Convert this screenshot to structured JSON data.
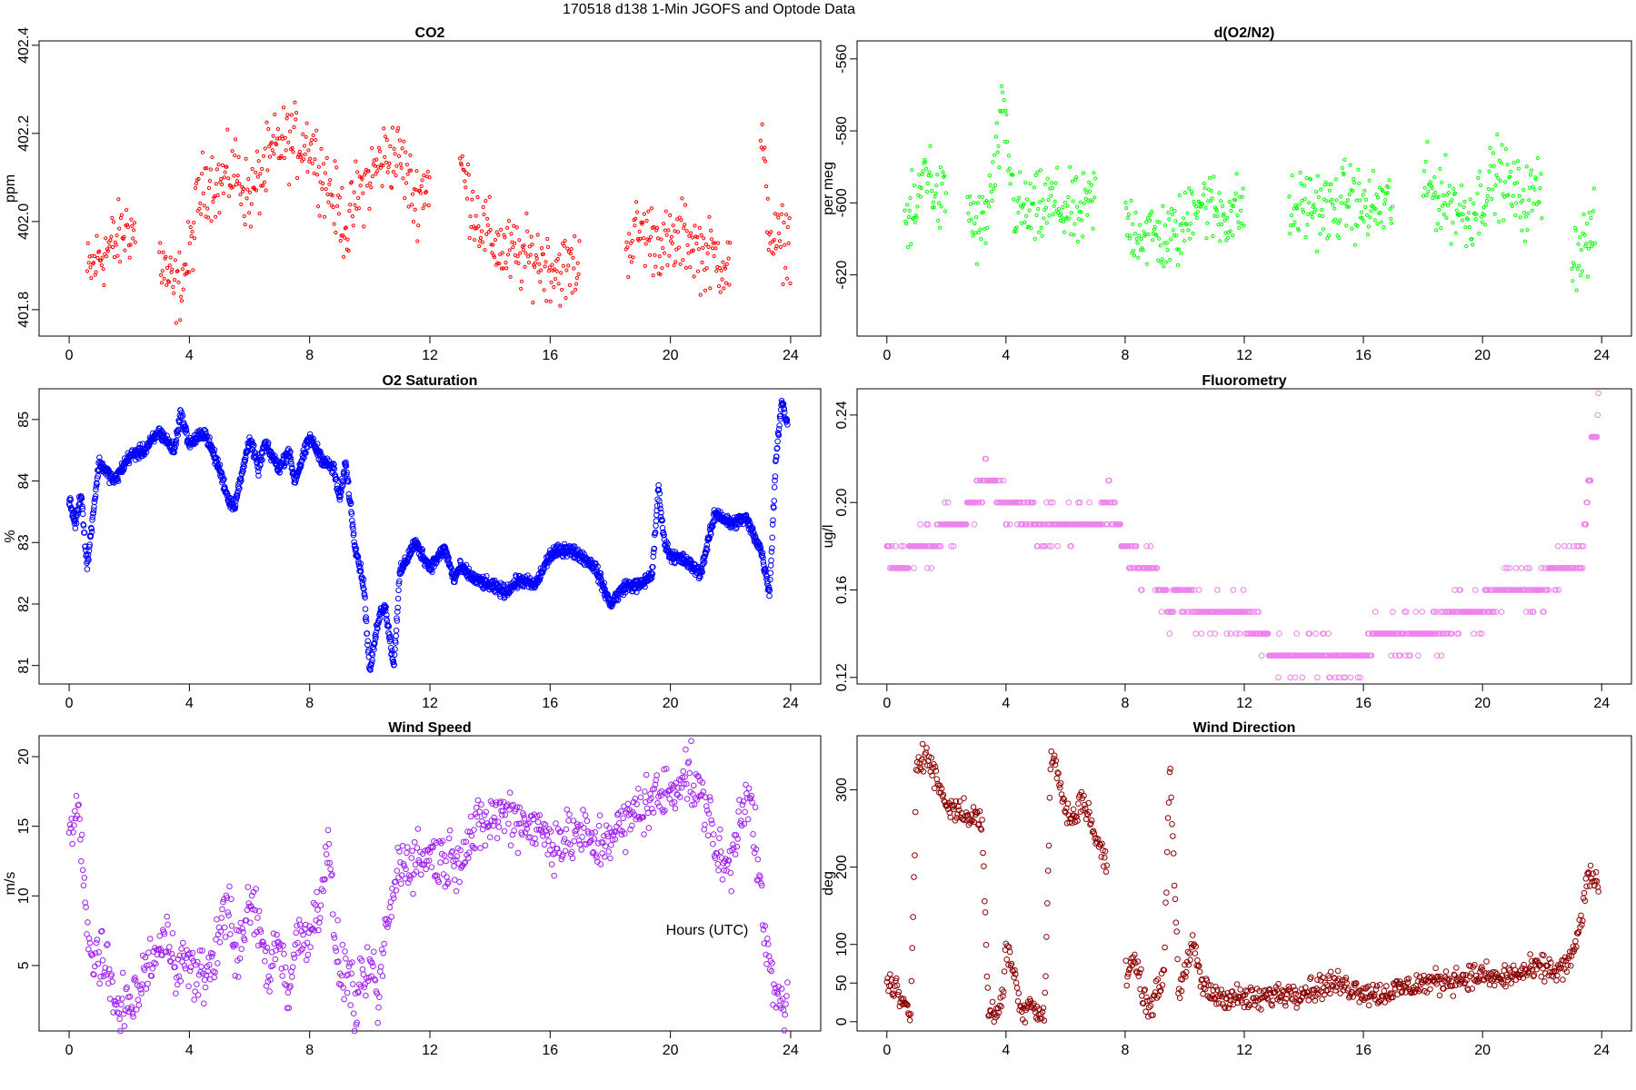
{
  "figure": {
    "title": "170518   d138   1-Min  JGOFS and Optode Data",
    "xlabel": "Hours (UTC)"
  },
  "chart_data": [
    {
      "id": "co2",
      "type": "scatter",
      "title": "CO2",
      "ylabel": "ppm",
      "xlabel": "",
      "xlim": [
        -1,
        25
      ],
      "ylim": [
        401.74,
        402.41
      ],
      "xticks": [
        0,
        4,
        8,
        12,
        16,
        20,
        24
      ],
      "xtick_labels": [
        "0",
        "4",
        "8",
        "12",
        "16",
        "20",
        "24"
      ],
      "yticks": [
        401.8,
        402.0,
        402.2,
        402.4
      ],
      "ytick_labels": [
        "401.8",
        "402.0",
        "402.2",
        "402.4"
      ],
      "color": "#ff0000",
      "marker_size": 1.6,
      "noise": 0.04,
      "series_x": [
        0.6,
        1.0,
        1.5,
        2.0,
        2.2,
        2.7,
        3.0,
        3.3,
        3.5,
        3.7,
        4.0,
        4.3,
        4.6,
        5.0,
        5.5,
        6.0,
        6.5,
        7.0,
        8.0,
        8.5,
        9.0,
        9.3,
        9.5,
        10.0,
        10.5,
        11.0,
        11.5,
        12.0,
        12.5,
        13.0,
        13.5,
        14.0,
        14.5,
        15.0,
        15.5,
        16.0,
        16.5,
        17.0,
        18.0,
        18.5,
        19.0,
        19.5,
        20.0,
        20.5,
        21.0,
        21.5,
        22.0,
        22.2,
        23.0,
        23.3,
        23.5,
        24.0
      ],
      "series_y": [
        401.88,
        401.92,
        401.95,
        401.99,
        401.97,
        null,
        401.92,
        401.87,
        401.84,
        401.86,
        401.92,
        402.05,
        402.1,
        402.08,
        402.12,
        402.05,
        402.12,
        402.18,
        402.18,
        402.1,
        402.02,
        401.98,
        402.05,
        402.1,
        402.15,
        402.15,
        402.05,
        402.1,
        null,
        402.13,
        402.02,
        401.96,
        401.93,
        401.92,
        401.92,
        401.9,
        401.89,
        401.9,
        null,
        401.95,
        401.98,
        401.96,
        401.94,
        401.97,
        401.93,
        401.92,
        401.9,
        null,
        402.2,
        401.98,
        401.95,
        401.96
      ]
    },
    {
      "id": "o2n2",
      "type": "scatter",
      "title": "d(O2/N2)",
      "ylabel": "per meg",
      "xlabel": "",
      "xlim": [
        -1,
        25
      ],
      "ylim": [
        -637,
        -555
      ],
      "xticks": [
        0,
        4,
        8,
        12,
        16,
        20,
        24
      ],
      "xtick_labels": [
        "0",
        "4",
        "8",
        "12",
        "16",
        "20",
        "24"
      ],
      "yticks": [
        -620,
        -600,
        -580,
        -560
      ],
      "ytick_labels": [
        "-620",
        "-600",
        "-580",
        "-560"
      ],
      "color": "#00ff00",
      "marker_size": 1.6,
      "noise": 5,
      "series_x": [
        0.6,
        1.0,
        1.3,
        1.7,
        2.0,
        2.4,
        2.7,
        3.0,
        3.3,
        3.6,
        3.9,
        4.3,
        5.0,
        5.5,
        6.0,
        6.5,
        7.0,
        7.2,
        8.0,
        8.5,
        9.0,
        9.5,
        10.0,
        10.3,
        11.0,
        11.5,
        12.0,
        12.4,
        13.5,
        14.0,
        15.0,
        15.5,
        16.0,
        17.0,
        17.8,
        18.0,
        19.0,
        19.5,
        20.0,
        20.5,
        21.0,
        21.5,
        22.0,
        22.2,
        23.0,
        23.3,
        23.8
      ],
      "series_y": [
        -605,
        -603,
        -588,
        -600,
        -598,
        null,
        -600,
        -608,
        -605,
        -593,
        -575,
        -602,
        -603,
        -600,
        -602,
        -604,
        -598,
        null,
        -605,
        -608,
        -609,
        -610,
        -607,
        -598,
        -602,
        -603,
        -601,
        null,
        -604,
        -600,
        -602,
        -598,
        -602,
        -600,
        null,
        -595,
        -600,
        -604,
        -598,
        -592,
        -597,
        -600,
        -595,
        null,
        -615,
        -612,
        -608
      ]
    },
    {
      "id": "o2sat",
      "type": "line",
      "title": "O2 Saturation",
      "ylabel": "%",
      "xlabel": "",
      "xlim": [
        -1,
        25
      ],
      "ylim": [
        80.7,
        85.5
      ],
      "xticks": [
        0,
        4,
        8,
        12,
        16,
        20,
        24
      ],
      "xtick_labels": [
        "0",
        "4",
        "8",
        "12",
        "16",
        "20",
        "24"
      ],
      "yticks": [
        81,
        82,
        83,
        84,
        85
      ],
      "ytick_labels": [
        "81",
        "82",
        "83",
        "84",
        "85"
      ],
      "color": "#0000ff",
      "marker_size": 2.8,
      "noise": 0.05,
      "series_x": [
        0,
        0.2,
        0.4,
        0.6,
        0.8,
        1.0,
        1.5,
        2.0,
        2.5,
        3.0,
        3.5,
        3.7,
        4.0,
        4.5,
        5.0,
        5.3,
        5.5,
        5.7,
        6.0,
        6.3,
        6.5,
        7.0,
        7.3,
        7.5,
        8.0,
        8.5,
        8.8,
        9.0,
        9.2,
        9.5,
        9.8,
        10.0,
        10.3,
        10.5,
        10.8,
        11.0,
        11.5,
        12.0,
        12.5,
        12.8,
        13.0,
        13.5,
        14.0,
        14.5,
        15.0,
        15.5,
        16.0,
        16.5,
        17.0,
        17.5,
        18.0,
        18.5,
        19.0,
        19.4,
        19.6,
        19.8,
        20.0,
        20.5,
        21.0,
        21.5,
        22.0,
        22.5,
        23.0,
        23.3,
        23.5,
        23.7,
        23.9
      ],
      "series_y": [
        83.7,
        83.3,
        83.8,
        82.6,
        83.5,
        84.3,
        84.0,
        84.4,
        84.5,
        84.8,
        84.5,
        85.1,
        84.6,
        84.8,
        84.2,
        83.7,
        83.6,
        84.0,
        84.7,
        84.2,
        84.6,
        84.2,
        84.5,
        84.0,
        84.7,
        84.3,
        84.2,
        83.7,
        84.3,
        83.0,
        82.3,
        80.9,
        81.8,
        82.0,
        81.0,
        82.5,
        83.0,
        82.6,
        82.9,
        82.4,
        82.6,
        82.4,
        82.3,
        82.2,
        82.4,
        82.3,
        82.8,
        82.9,
        82.8,
        82.6,
        82.0,
        82.3,
        82.3,
        82.5,
        83.9,
        83.0,
        82.8,
        82.7,
        82.5,
        83.5,
        83.3,
        83.4,
        82.9,
        82.2,
        84.3,
        85.3,
        84.9
      ]
    },
    {
      "id": "fluor",
      "type": "scatter",
      "title": "Fluorometry",
      "ylabel": "ug/l",
      "xlabel": "",
      "xlim": [
        -1,
        25
      ],
      "ylim": [
        0.117,
        0.252
      ],
      "xticks": [
        0,
        4,
        8,
        12,
        16,
        20,
        24
      ],
      "xtick_labels": [
        "0",
        "4",
        "8",
        "12",
        "16",
        "20",
        "24"
      ],
      "yticks": [
        0.12,
        0.16,
        0.2,
        0.24
      ],
      "ytick_labels": [
        "0.12",
        "0.16",
        "0.20",
        "0.24"
      ],
      "color": "#ee82ee",
      "marker_size": 2.8,
      "noise": 0.004,
      "quantize": 0.01,
      "series_x": [
        0,
        0.5,
        1.0,
        1.5,
        2.0,
        2.5,
        3.0,
        3.3,
        3.5,
        4.0,
        4.5,
        5.0,
        5.5,
        6.0,
        6.5,
        7.0,
        7.5,
        8.0,
        8.5,
        9.0,
        9.5,
        10.0,
        10.5,
        11.0,
        11.5,
        12.0,
        12.5,
        13.0,
        13.5,
        14.0,
        14.5,
        15.0,
        15.5,
        16.0,
        16.5,
        17.0,
        17.5,
        18.0,
        18.5,
        19.0,
        19.5,
        20.0,
        20.5,
        21.0,
        21.5,
        22.0,
        22.5,
        23.0,
        23.3,
        23.5,
        23.7,
        23.9
      ],
      "series_y": [
        0.18,
        0.17,
        0.18,
        0.18,
        0.19,
        0.19,
        0.2,
        0.21,
        0.21,
        0.2,
        0.2,
        0.19,
        0.19,
        0.19,
        0.19,
        0.19,
        0.2,
        0.18,
        0.17,
        0.17,
        0.15,
        0.16,
        0.15,
        0.15,
        0.15,
        0.15,
        0.14,
        0.13,
        0.13,
        0.13,
        0.13,
        0.13,
        0.13,
        0.13,
        0.14,
        0.14,
        0.14,
        0.14,
        0.14,
        0.15,
        0.15,
        0.15,
        0.16,
        0.16,
        0.16,
        0.16,
        0.17,
        0.17,
        0.17,
        0.2,
        0.23,
        0.24
      ]
    },
    {
      "id": "wspd",
      "type": "scatter",
      "title": "Wind Speed",
      "ylabel": "m/s",
      "xlabel": "",
      "xlim": [
        -1,
        25
      ],
      "ylim": [
        0.3,
        21.5
      ],
      "xticks": [
        0,
        4,
        8,
        12,
        16,
        20,
        24
      ],
      "xtick_labels": [
        "0",
        "4",
        "8",
        "12",
        "16",
        "20",
        "24"
      ],
      "yticks": [
        5,
        10,
        15,
        20
      ],
      "ytick_labels": [
        "5",
        "10",
        "15",
        "20"
      ],
      "color": "#a020f0",
      "marker_size": 2.8,
      "noise": 1.0,
      "series_x": [
        0,
        0.3,
        0.5,
        0.7,
        1.0,
        1.3,
        1.5,
        2.0,
        2.3,
        2.6,
        3.0,
        3.3,
        3.5,
        4.0,
        4.3,
        4.6,
        5.0,
        5.3,
        5.6,
        6.0,
        6.3,
        6.6,
        7.0,
        7.3,
        7.6,
        8.0,
        8.3,
        8.6,
        8.8,
        9.0,
        9.3,
        9.5,
        9.8,
        10.0,
        10.3,
        10.5,
        11.0,
        11.5,
        12.0,
        12.5,
        13.0,
        13.5,
        14.0,
        14.5,
        15.0,
        15.5,
        16.0,
        16.5,
        17.0,
        17.5,
        18.0,
        18.5,
        19.0,
        19.5,
        20.0,
        20.5,
        21.0,
        21.3,
        21.6,
        22.0,
        22.3,
        22.6,
        22.9,
        23.2,
        23.5,
        23.7,
        23.9
      ],
      "series_y": [
        14.5,
        16.5,
        10,
        5.5,
        6,
        4,
        2.5,
        2,
        3,
        5,
        6,
        7,
        5.5,
        5,
        4,
        4.5,
        7,
        10,
        5,
        9.5,
        8,
        4.5,
        7,
        3,
        7,
        7.5,
        9,
        14,
        8,
        4.5,
        4.5,
        2,
        3.5,
        5,
        2.5,
        7,
        12.5,
        12.5,
        13,
        12.5,
        13,
        14.5,
        15.5,
        16,
        15.5,
        15,
        14,
        14,
        14.5,
        13.5,
        14.5,
        15,
        16.5,
        17,
        17.5,
        19,
        17,
        16,
        12.5,
        12,
        16,
        18,
        12,
        6,
        2.5,
        2.5,
        2.5
      ]
    },
    {
      "id": "wdir",
      "type": "scatter",
      "title": "Wind Direction",
      "ylabel": "deg",
      "xlabel": "",
      "xlim": [
        -1,
        25
      ],
      "ylim": [
        -12,
        370
      ],
      "xticks": [
        0,
        4,
        8,
        12,
        16,
        20,
        24
      ],
      "xtick_labels": [
        "0",
        "4",
        "8",
        "12",
        "16",
        "20",
        "24"
      ],
      "yticks": [
        0,
        50,
        100,
        200,
        300
      ],
      "ytick_labels": [
        "0",
        "50",
        "100",
        "200",
        "300"
      ],
      "color": "#8b0000",
      "marker_size": 2.8,
      "noise": 8,
      "series_x": [
        0,
        0.3,
        0.5,
        0.8,
        1.0,
        1.2,
        1.4,
        1.6,
        1.8,
        2.0,
        2.3,
        2.6,
        2.9,
        3.2,
        3.4,
        3.6,
        3.9,
        4.0,
        4.3,
        4.5,
        4.8,
        5.0,
        5.3,
        5.5,
        5.7,
        6.0,
        6.3,
        6.5,
        6.7,
        6.9,
        7.1,
        7.3,
        7.4,
        7.8,
        8.0,
        8.3,
        8.6,
        8.8,
        9.0,
        9.3,
        9.5,
        9.8,
        10.0,
        10.3,
        10.6,
        11.0,
        11.5,
        12.0,
        12.5,
        13.0,
        13.5,
        14.0,
        14.5,
        15.0,
        15.5,
        16.0,
        16.5,
        17.0,
        17.5,
        18.0,
        18.5,
        19.0,
        19.5,
        20.0,
        20.5,
        21.0,
        21.5,
        22.0,
        22.5,
        23.0,
        23.3,
        23.5,
        23.7,
        23.9
      ],
      "series_y": [
        50,
        45,
        20,
        10,
        340,
        345,
        340,
        320,
        300,
        280,
        275,
        270,
        265,
        260,
        15,
        10,
        30,
        100,
        60,
        10,
        30,
        15,
        10,
        340,
        330,
        270,
        260,
        290,
        280,
        250,
        230,
        210,
        200,
        null,
        60,
        80,
        40,
        20,
        30,
        60,
        340,
        40,
        60,
        100,
        45,
        35,
        32,
        30,
        28,
        35,
        38,
        40,
        45,
        50,
        45,
        40,
        35,
        40,
        45,
        50,
        52,
        55,
        58,
        60,
        55,
        60,
        65,
        70,
        65,
        80,
        130,
        180,
        190,
        175
      ]
    }
  ]
}
